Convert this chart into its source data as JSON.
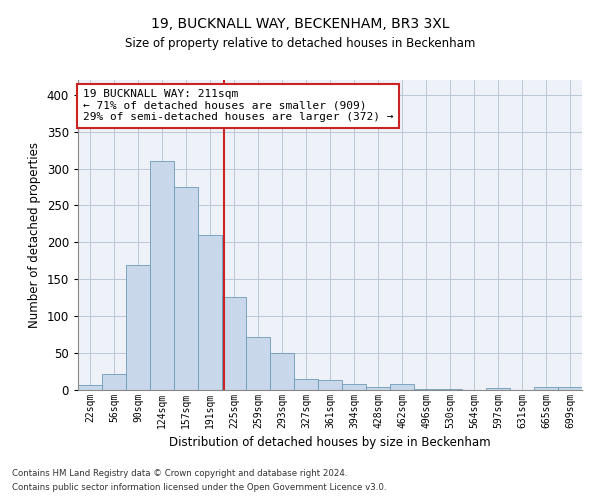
{
  "title1": "19, BUCKNALL WAY, BECKENHAM, BR3 3XL",
  "title2": "Size of property relative to detached houses in Beckenham",
  "xlabel": "Distribution of detached houses by size in Beckenham",
  "ylabel": "Number of detached properties",
  "bar_labels": [
    "22sqm",
    "56sqm",
    "90sqm",
    "124sqm",
    "157sqm",
    "191sqm",
    "225sqm",
    "259sqm",
    "293sqm",
    "327sqm",
    "361sqm",
    "394sqm",
    "428sqm",
    "462sqm",
    "496sqm",
    "530sqm",
    "564sqm",
    "597sqm",
    "631sqm",
    "665sqm",
    "699sqm"
  ],
  "bar_values": [
    7,
    22,
    170,
    310,
    275,
    210,
    126,
    72,
    50,
    15,
    14,
    8,
    4,
    8,
    2,
    2,
    0,
    3,
    0,
    4,
    4
  ],
  "bar_color": "#c8d8ea",
  "bar_edge_color": "#6a9ab8",
  "grid_color": "#b8c8d8",
  "background_color": "#eef2f8",
  "annotation_line1": "19 BUCKNALL WAY: 211sqm",
  "annotation_line2": "← 71% of detached houses are smaller (909)",
  "annotation_line3": "29% of semi-detached houses are larger (372) →",
  "vline_color": "#cc2222",
  "annotation_box_color": "#ffffff",
  "annotation_box_edge": "#cc2222",
  "ylim": [
    0,
    420
  ],
  "yticks": [
    0,
    50,
    100,
    150,
    200,
    250,
    300,
    350,
    400
  ],
  "footnote1": "Contains HM Land Registry data © Crown copyright and database right 2024.",
  "footnote2": "Contains public sector information licensed under the Open Government Licence v3.0."
}
